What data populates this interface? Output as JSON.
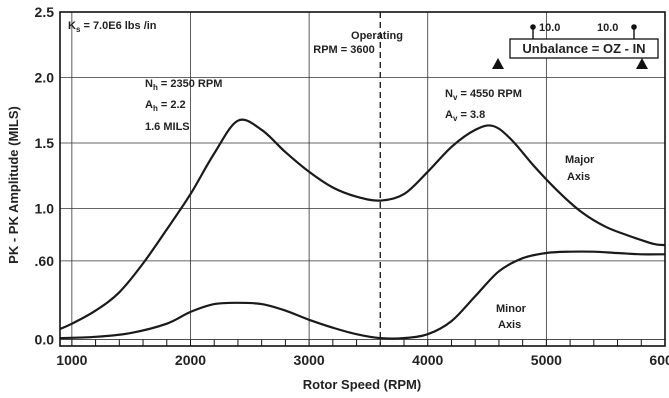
{
  "chart_data": {
    "type": "line",
    "xlabel": "Rotor Speed (RPM)",
    "ylabel": "PK - PK Amplitude (MILS)",
    "xlim": [
      900,
      6000
    ],
    "ylim": [
      -0.05,
      2.5
    ],
    "x_ticks": [
      1000,
      2000,
      3000,
      4000,
      5000,
      6000
    ],
    "x_tick_labels": [
      "1000",
      "2000",
      "3000",
      "4000",
      "5000",
      "6000"
    ],
    "y_ticks": [
      0.0,
      0.6,
      1.0,
      1.5,
      2.0,
      2.5
    ],
    "y_tick_labels": [
      "0.0",
      ".60",
      "1.0",
      "1.5",
      "2.0",
      "2.5"
    ],
    "grid": true,
    "series": [
      {
        "name": "Major Axis",
        "label_line1": "Major",
        "label_line2": "Axis",
        "x": [
          900,
          1000,
          1200,
          1400,
          1600,
          1800,
          2000,
          2200,
          2400,
          2600,
          2800,
          3000,
          3200,
          3400,
          3600,
          3800,
          4000,
          4200,
          4400,
          4550,
          4700,
          4900,
          5100,
          5300,
          5500,
          5700,
          5900,
          6000
        ],
        "y": [
          0.08,
          0.12,
          0.22,
          0.36,
          0.58,
          0.84,
          1.11,
          1.42,
          1.67,
          1.6,
          1.43,
          1.28,
          1.16,
          1.09,
          1.06,
          1.11,
          1.28,
          1.47,
          1.6,
          1.63,
          1.53,
          1.32,
          1.13,
          0.97,
          0.86,
          0.79,
          0.73,
          0.72
        ]
      },
      {
        "name": "Minor Axis",
        "label_line1": "Minor",
        "label_line2": "Axis",
        "x": [
          900,
          1200,
          1500,
          1800,
          2000,
          2200,
          2400,
          2600,
          2800,
          3000,
          3200,
          3400,
          3600,
          3800,
          4000,
          4200,
          4400,
          4600,
          4800,
          5000,
          5200,
          5400,
          5600,
          5800,
          6000
        ],
        "y": [
          0.01,
          0.02,
          0.05,
          0.12,
          0.21,
          0.27,
          0.28,
          0.27,
          0.22,
          0.15,
          0.09,
          0.04,
          0.01,
          0.01,
          0.04,
          0.14,
          0.33,
          0.52,
          0.62,
          0.66,
          0.67,
          0.67,
          0.66,
          0.65,
          0.65
        ]
      }
    ],
    "operating_line": {
      "x": 3600,
      "label_line1": "Operating",
      "label_line2": "RPM = 3600"
    },
    "annotations": {
      "ks": {
        "main": "K",
        "sub": "s",
        "rest": " = 7.0E6 lbs /in"
      },
      "nh": {
        "main": "N",
        "sub": "h",
        "rest": " = 2350 RPM"
      },
      "ah": {
        "main": "A",
        "sub": "h",
        "rest": " = 2.2"
      },
      "mils": "1.6 MILS",
      "nv": {
        "main": "N",
        "sub": "v",
        "rest": " = 4550 RPM"
      },
      "av": {
        "main": "A",
        "sub": "v",
        "rest": " = 3.8"
      }
    },
    "legend_box": {
      "label": "Unbalance = OZ - IN",
      "left_value": "10.0",
      "right_value": "10.0",
      "placement": "top-right"
    }
  }
}
